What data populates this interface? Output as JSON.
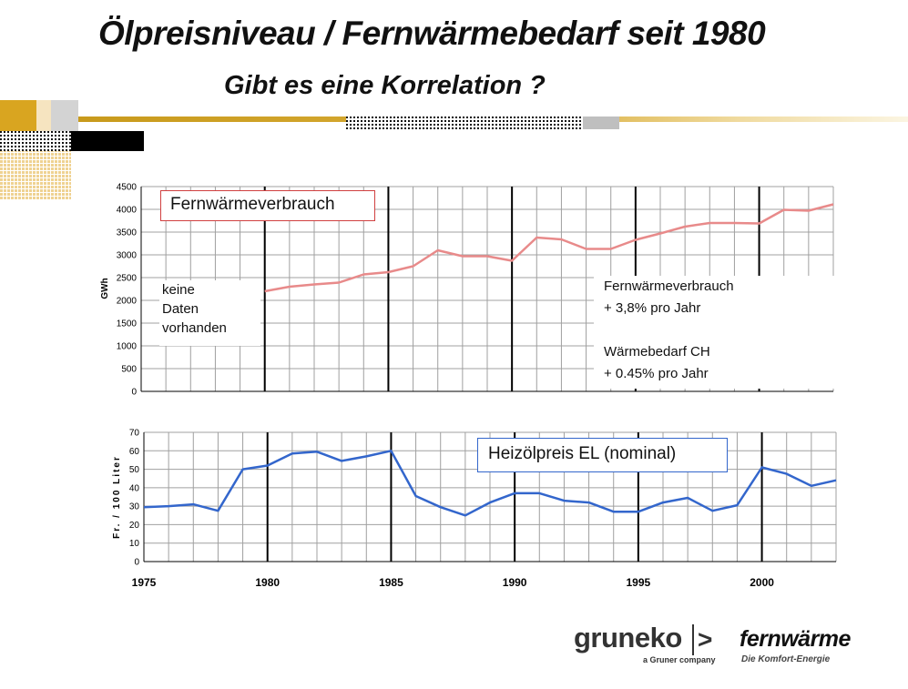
{
  "header": {
    "title": "Ölpreisniveau / Fernwärmebedarf seit 1980",
    "subtitle": "Gibt es eine Korrelation ?"
  },
  "chart_data": [
    {
      "type": "line",
      "xlim": [
        1975,
        2003
      ],
      "ylim": [
        0,
        4500
      ],
      "yticks": [
        0,
        500,
        1000,
        1500,
        2000,
        2500,
        3000,
        3500,
        4000,
        4500
      ],
      "ytick_labels": [
        "0",
        "500",
        "1000",
        "1500",
        "2000",
        "2500",
        "3000",
        "3500",
        "4000",
        "4500"
      ],
      "ylabel": "GWh",
      "grid": true,
      "vlines": [
        1980,
        1985,
        1990,
        1995,
        2000
      ],
      "legend_box": "Fernwärmeverbrauch",
      "annotations": {
        "no_data": [
          "keine",
          "Daten",
          "vorhanden"
        ],
        "growth": [
          "Fernwärmeverbrauch",
          "+ 3,8% pro Jahr",
          "",
          "Wärmebedarf CH",
          "+ 0.45% pro Jahr"
        ]
      },
      "color": "#e88a8a",
      "series": [
        {
          "x": [
            1980,
            1981,
            1982,
            1983,
            1984,
            1985,
            1986,
            1987,
            1988,
            1989,
            1990,
            1991,
            1992,
            1993,
            1994,
            1995,
            1996,
            1997,
            1998,
            1999,
            2000,
            2001,
            2002,
            2003
          ],
          "values": [
            2200,
            2300,
            2350,
            2390,
            2570,
            2620,
            2750,
            3100,
            2970,
            2970,
            2870,
            3380,
            3340,
            3130,
            3130,
            3330,
            3470,
            3620,
            3700,
            3700,
            3690,
            3990,
            3970,
            4110
          ]
        }
      ]
    },
    {
      "type": "line",
      "xlim": [
        1975,
        2003
      ],
      "ylim": [
        0,
        70
      ],
      "yticks": [
        0,
        10,
        20,
        30,
        40,
        50,
        60,
        70
      ],
      "ytick_labels": [
        "0",
        "10",
        "20",
        "30",
        "40",
        "50",
        "60",
        "70"
      ],
      "xticks": [
        1975,
        1980,
        1985,
        1990,
        1995,
        2000
      ],
      "xtick_labels": [
        "1975",
        "1980",
        "1985",
        "1990",
        "1995",
        "2000"
      ],
      "ylabel": "Fr. / 100 Liter",
      "grid": true,
      "vlines": [
        1980,
        1985,
        1990,
        1995,
        2000
      ],
      "legend_box": "Heizölpreis EL (nominal)",
      "color": "#3366cc",
      "series": [
        {
          "x": [
            1975,
            1976,
            1977,
            1978,
            1979,
            1980,
            1981,
            1982,
            1983,
            1984,
            1985,
            1986,
            1987,
            1988,
            1989,
            1990,
            1991,
            1992,
            1993,
            1994,
            1995,
            1996,
            1997,
            1998,
            1999,
            2000,
            2001,
            2002,
            2003
          ],
          "values": [
            29.5,
            30,
            31,
            27.5,
            50,
            52,
            58.5,
            59.5,
            54.5,
            57,
            60,
            35.5,
            29.5,
            25,
            32,
            37,
            37,
            33,
            32,
            27,
            27,
            32,
            34.5,
            27.5,
            30.5,
            51,
            47.5,
            41,
            44
          ]
        }
      ]
    }
  ],
  "logos": {
    "gruneko": "gruneko",
    "gruneko_arrow": ">",
    "gruneko_tagline": "a Gruner company",
    "fernwaerme": "fernwärme",
    "fernwaerme_tagline": "Die Komfort-Energie"
  }
}
